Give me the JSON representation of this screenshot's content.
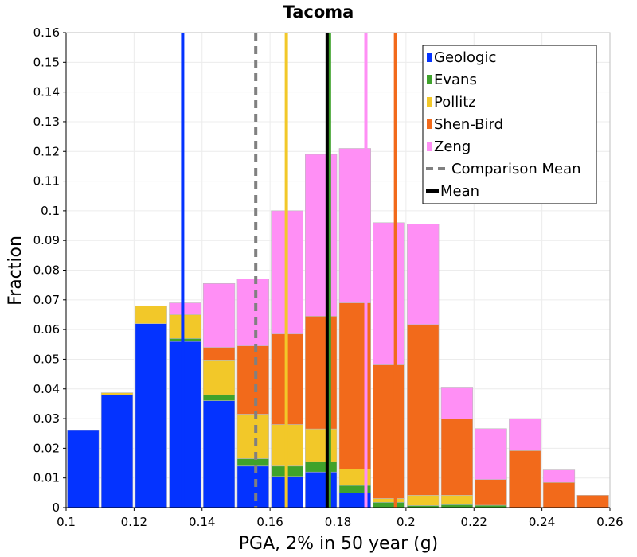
{
  "chart_data": {
    "type": "bar",
    "title": "Tacoma",
    "xlabel": "PGA, 2% in 50 year (g)",
    "ylabel": "Fraction",
    "xlim": [
      0.1,
      0.26
    ],
    "ylim": [
      0,
      0.16
    ],
    "x_ticks": [
      "0.1",
      "0.12",
      "0.14",
      "0.16",
      "0.18",
      "0.2",
      "0.22",
      "0.24",
      "0.26"
    ],
    "y_ticks": [
      "0",
      "0.01",
      "0.02",
      "0.03",
      "0.04",
      "0.05",
      "0.06",
      "0.07",
      "0.08",
      "0.09",
      "0.1",
      "0.11",
      "0.12",
      "0.13",
      "0.14",
      "0.15",
      "0.16"
    ],
    "grid": true,
    "legend_position": "top-right",
    "stacked": true,
    "bin_width": 0.01,
    "bin_centers": [
      0.105,
      0.115,
      0.125,
      0.135,
      0.145,
      0.155,
      0.165,
      0.175,
      0.185,
      0.195,
      0.205,
      0.215,
      0.225,
      0.235,
      0.245,
      0.255
    ],
    "series": [
      {
        "name": "Geologic",
        "color": "#0433ff",
        "values": [
          0.026,
          0.038,
          0.062,
          0.056,
          0.036,
          0.014,
          0.0105,
          0.012,
          0.005,
          0.0,
          0.0,
          0.0,
          0.0,
          0.0,
          0.0,
          0.0
        ]
      },
      {
        "name": "Evans",
        "color": "#3fa22b",
        "values": [
          0.0,
          0.0,
          0.0,
          0.001,
          0.002,
          0.0025,
          0.0035,
          0.0035,
          0.0025,
          0.0018,
          0.0007,
          0.001,
          0.0008,
          0.0,
          0.0,
          0.0
        ]
      },
      {
        "name": "Pollitz",
        "color": "#f2c829",
        "values": [
          0.0,
          0.0007,
          0.006,
          0.008,
          0.0115,
          0.015,
          0.014,
          0.011,
          0.0055,
          0.0013,
          0.0035,
          0.0032,
          0.0,
          0.0,
          0.0,
          0.0
        ]
      },
      {
        "name": "Shen-Bird",
        "color": "#f26a1b",
        "values": [
          0.0,
          0.0,
          0.0,
          0.0,
          0.0045,
          0.023,
          0.0305,
          0.038,
          0.056,
          0.045,
          0.0575,
          0.0257,
          0.0087,
          0.0192,
          0.0085,
          0.0042
        ]
      },
      {
        "name": "Zeng",
        "color": "#ff8ff5",
        "values": [
          0.0,
          0.0,
          0.0,
          0.004,
          0.0215,
          0.0225,
          0.0415,
          0.0545,
          0.052,
          0.0479,
          0.0338,
          0.0107,
          0.0171,
          0.0108,
          0.0042,
          0.0
        ]
      }
    ],
    "vertical_lines": [
      {
        "name": "Geologic",
        "x": 0.1343,
        "color": "#0433ff",
        "style": "solid"
      },
      {
        "name": "Evans",
        "x": 0.1775,
        "color": "#3fa22b",
        "style": "solid"
      },
      {
        "name": "Pollitz",
        "x": 0.1648,
        "color": "#f2c829",
        "style": "solid"
      },
      {
        "name": "Shen-Bird",
        "x": 0.1969,
        "color": "#f26a1b",
        "style": "solid"
      },
      {
        "name": "Zeng",
        "x": 0.1882,
        "color": "#ff8ff5",
        "style": "solid"
      },
      {
        "name": "Comparison Mean",
        "x": 0.1558,
        "color": "#808080",
        "style": "dashed"
      },
      {
        "name": "Mean",
        "x": 0.1768,
        "color": "#000000",
        "style": "solid"
      }
    ],
    "legend": [
      {
        "label": "Geologic",
        "color": "#0433ff",
        "kind": "swatch"
      },
      {
        "label": "Evans",
        "color": "#3fa22b",
        "kind": "swatch"
      },
      {
        "label": "Pollitz",
        "color": "#f2c829",
        "kind": "swatch"
      },
      {
        "label": "Shen-Bird",
        "color": "#f26a1b",
        "kind": "swatch"
      },
      {
        "label": "Zeng",
        "color": "#ff8ff5",
        "kind": "swatch"
      },
      {
        "label": "Comparison Mean",
        "color": "#808080",
        "kind": "dashed"
      },
      {
        "label": "Mean",
        "color": "#000000",
        "kind": "line"
      }
    ]
  }
}
